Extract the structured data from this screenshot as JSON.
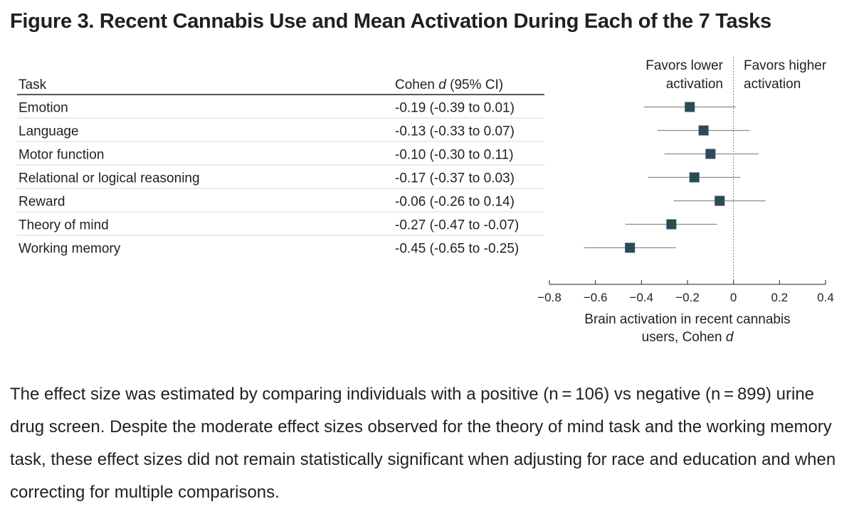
{
  "figure": {
    "title": "Figure 3.  Recent Cannabis Use and Mean Activation During Each of the 7 Tasks",
    "caption": "The effect size was estimated by comparing individuals with a positive (n = 106) vs negative (n = 899) urine drug screen. Despite the moderate effect sizes observed for the theory of mind task and the working memory task, these effect sizes did not remain statistically significant when adjusting for race and education and when correcting for multiple comparisons."
  },
  "chart_data": {
    "type": "forest",
    "table_headers": {
      "task": "Task",
      "effect_prefix": "Cohen ",
      "effect_italic": "d",
      "effect_suffix": " (95% CI)"
    },
    "rows": [
      {
        "task": "Emotion",
        "estimate": -0.19,
        "lower": -0.39,
        "upper": 0.01,
        "label": "-0.19 (-0.39 to 0.01)"
      },
      {
        "task": "Language",
        "estimate": -0.13,
        "lower": -0.33,
        "upper": 0.07,
        "label": "-0.13 (-0.33 to 0.07)"
      },
      {
        "task": "Motor function",
        "estimate": -0.1,
        "lower": -0.3,
        "upper": 0.11,
        "label": "-0.10 (-0.30 to 0.11)"
      },
      {
        "task": "Relational or logical reasoning",
        "estimate": -0.17,
        "lower": -0.37,
        "upper": 0.03,
        "label": "-0.17 (-0.37 to 0.03)"
      },
      {
        "task": "Reward",
        "estimate": -0.06,
        "lower": -0.26,
        "upper": 0.14,
        "label": "-0.06 (-0.26 to 0.14)"
      },
      {
        "task": "Theory of mind",
        "estimate": -0.27,
        "lower": -0.47,
        "upper": -0.07,
        "label": "-0.27 (-0.47 to -0.07)"
      },
      {
        "task": "Working memory",
        "estimate": -0.45,
        "lower": -0.65,
        "upper": -0.25,
        "label": "-0.45 (-0.65 to -0.25)"
      }
    ],
    "xlim": [
      -0.8,
      0.4
    ],
    "x_ticks": [
      -0.8,
      -0.6,
      -0.4,
      -0.2,
      0,
      0.2,
      0.4
    ],
    "x_tick_labels": [
      "−0.8",
      "−0.6",
      "−0.4",
      "−0.2",
      "0",
      "0.2",
      "0.4"
    ],
    "reference_line": 0,
    "xlabel_lines": [
      "Brain activation in recent cannabis",
      "users, Cohen "
    ],
    "xlabel_italic": "d",
    "favors_left": [
      "Favors lower",
      "activation"
    ],
    "favors_right": [
      "Favors higher",
      "activation"
    ],
    "marker_color": "#2d4b55",
    "ci_color": "#8c8c8c",
    "rule_color": "#231f20",
    "row_divider_color": "#d9d9d9"
  }
}
